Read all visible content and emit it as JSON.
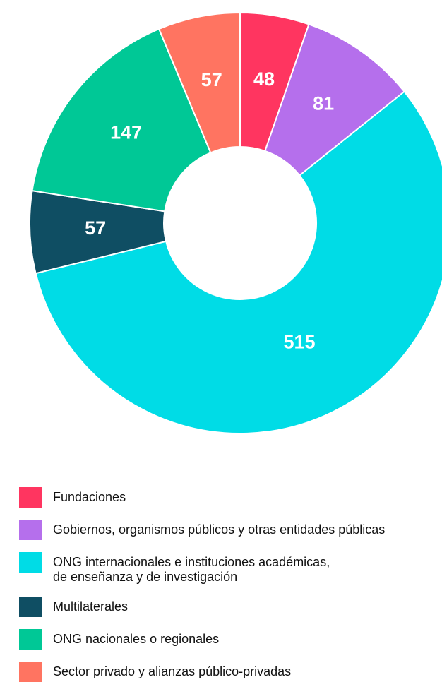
{
  "chart_data": {
    "type": "donut",
    "categories": [
      "Fundaciones",
      "Gobiernos, organismos públicos y otras entidades públicas",
      "ONG internacionales e instituciones académicas,\nde enseñanza y de investigación",
      "Multilaterales",
      "ONG nacionales o regionales",
      "Sector privado y alianzas público-privadas"
    ],
    "values": [
      48,
      81,
      515,
      57,
      147,
      57
    ],
    "colors": [
      "#ff3560",
      "#b56fec",
      "#00dce6",
      "#0f4e63",
      "#00c896",
      "#ff7461"
    ]
  }
}
